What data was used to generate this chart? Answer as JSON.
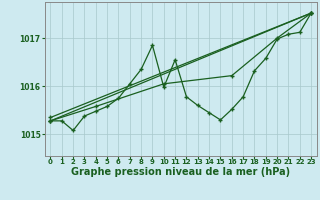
{
  "background_color": "#ceeaf0",
  "grid_color": "#a8c8cc",
  "line_color": "#1a6020",
  "xlabel": "Graphe pression niveau de la mer (hPa)",
  "xlabel_fontsize": 7,
  "ylabel_values": [
    1015,
    1016,
    1017
  ],
  "xlim": [
    -0.5,
    23.5
  ],
  "ylim": [
    1014.55,
    1017.75
  ],
  "xticks": [
    0,
    1,
    2,
    3,
    4,
    5,
    6,
    7,
    8,
    9,
    10,
    11,
    12,
    13,
    14,
    15,
    16,
    17,
    18,
    19,
    20,
    21,
    22,
    23
  ],
  "series": [
    {
      "x": [
        0,
        1,
        2,
        3,
        4,
        5,
        6,
        7,
        8,
        9,
        10,
        11,
        12,
        13,
        14,
        15,
        16,
        17,
        18,
        19,
        20,
        21,
        22,
        23
      ],
      "y": [
        1015.28,
        1015.28,
        1015.08,
        1015.38,
        1015.48,
        1015.58,
        1015.75,
        1016.05,
        1016.35,
        1016.85,
        1015.98,
        1016.55,
        1015.78,
        1015.6,
        1015.45,
        1015.3,
        1015.52,
        1015.78,
        1016.32,
        1016.58,
        1016.98,
        1017.08,
        1017.12,
        1017.52
      ]
    },
    {
      "x": [
        0,
        23
      ],
      "y": [
        1015.28,
        1017.52
      ]
    },
    {
      "x": [
        0,
        23
      ],
      "y": [
        1015.35,
        1017.52
      ]
    },
    {
      "x": [
        0,
        4,
        10,
        16,
        20,
        23
      ],
      "y": [
        1015.28,
        1015.58,
        1016.05,
        1016.22,
        1017.0,
        1017.52
      ]
    }
  ],
  "marker": "+",
  "markersize": 3.5,
  "linewidth": 0.9
}
